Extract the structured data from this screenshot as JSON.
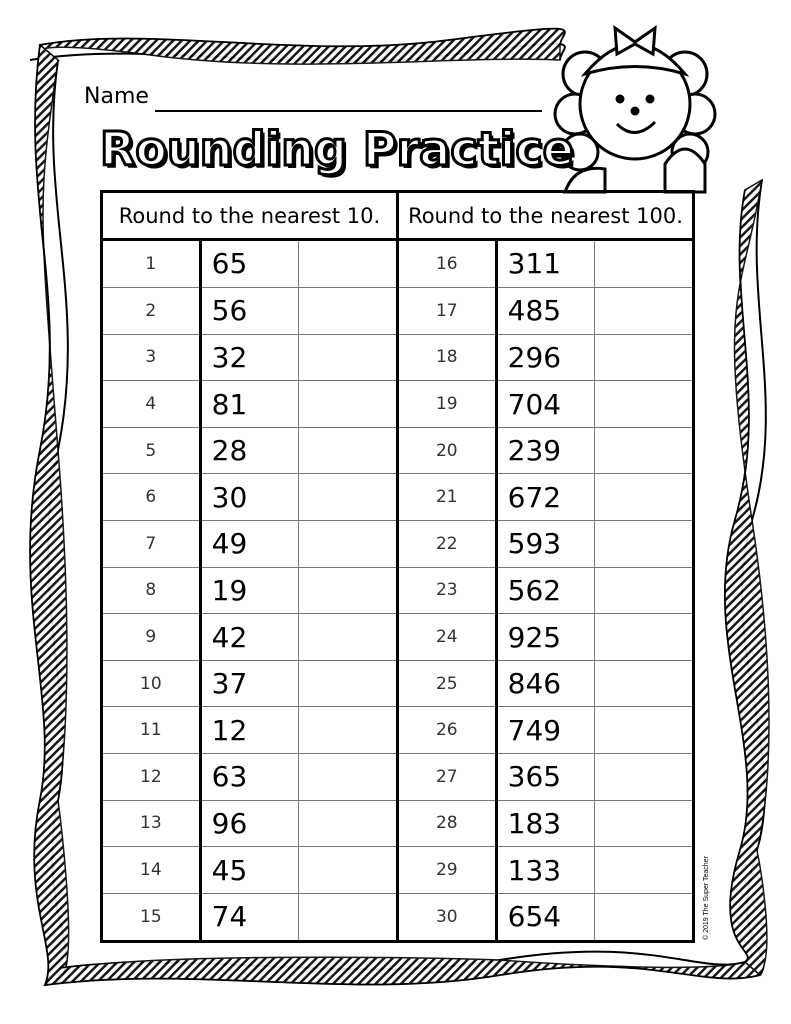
{
  "header": {
    "name_label": "Name",
    "title": "Rounding Practice"
  },
  "columns": [
    "Round to the nearest 10.",
    "Round to the nearest 100."
  ],
  "left_problems": [
    {
      "n": "1",
      "value": "65"
    },
    {
      "n": "2",
      "value": "56"
    },
    {
      "n": "3",
      "value": "32"
    },
    {
      "n": "4",
      "value": "81"
    },
    {
      "n": "5",
      "value": "28"
    },
    {
      "n": "6",
      "value": "30"
    },
    {
      "n": "7",
      "value": "49"
    },
    {
      "n": "8",
      "value": "19"
    },
    {
      "n": "9",
      "value": "42"
    },
    {
      "n": "10",
      "value": "37"
    },
    {
      "n": "11",
      "value": "12"
    },
    {
      "n": "12",
      "value": "63"
    },
    {
      "n": "13",
      "value": "96"
    },
    {
      "n": "14",
      "value": "45"
    },
    {
      "n": "15",
      "value": "74"
    }
  ],
  "right_problems": [
    {
      "n": "16",
      "value": "311"
    },
    {
      "n": "17",
      "value": "485"
    },
    {
      "n": "18",
      "value": "296"
    },
    {
      "n": "19",
      "value": "704"
    },
    {
      "n": "20",
      "value": "239"
    },
    {
      "n": "21",
      "value": "672"
    },
    {
      "n": "22",
      "value": "593"
    },
    {
      "n": "23",
      "value": "562"
    },
    {
      "n": "24",
      "value": "925"
    },
    {
      "n": "25",
      "value": "846"
    },
    {
      "n": "26",
      "value": "749"
    },
    {
      "n": "27",
      "value": "365"
    },
    {
      "n": "28",
      "value": "183"
    },
    {
      "n": "29",
      "value": "133"
    },
    {
      "n": "30",
      "value": "654"
    }
  ],
  "footer": {
    "copyright": "© 2019 The Super Teacher"
  },
  "decor": {
    "frame": "wavy-striped-border",
    "illustration": "girl-cartoon-icon"
  }
}
